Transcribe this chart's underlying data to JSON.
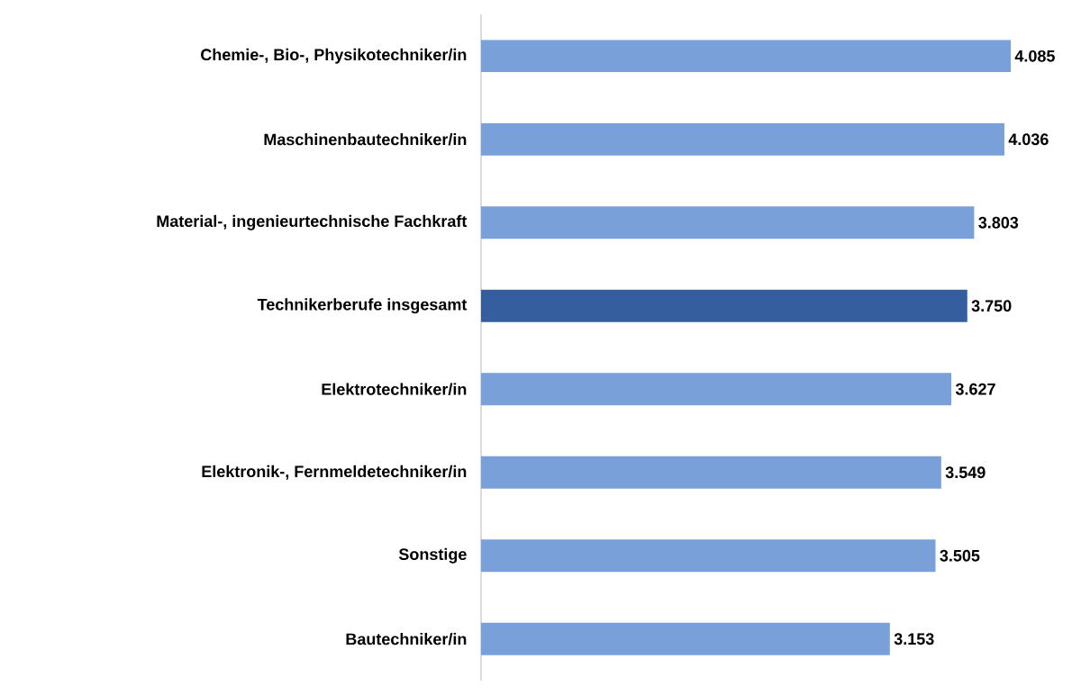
{
  "chart_data": {
    "type": "bar",
    "orientation": "horizontal",
    "categories": [
      "Chemie-, Bio-, Physikotechniker/in",
      "Maschinenbautechniker/in",
      "Material-, ingenieurtechnische Fachkraft",
      "Technikerberufe insgesamt",
      "Elektrotechniker/in",
      "Elektronik-, Fernmeldetechniker/in",
      "Sonstige",
      "Bautechniker/in"
    ],
    "values": [
      4085,
      4036,
      3803,
      3750,
      3627,
      3549,
      3505,
      3153
    ],
    "value_labels": [
      "4.085",
      "4.036",
      "3.803",
      "3.750",
      "3.627",
      "3.549",
      "3.505",
      "3.153"
    ],
    "colors": [
      "#7aa0da",
      "#7aa0da",
      "#7aa0da",
      "#345e9e",
      "#7aa0da",
      "#7aa0da",
      "#7aa0da",
      "#7aa0da"
    ]
  }
}
